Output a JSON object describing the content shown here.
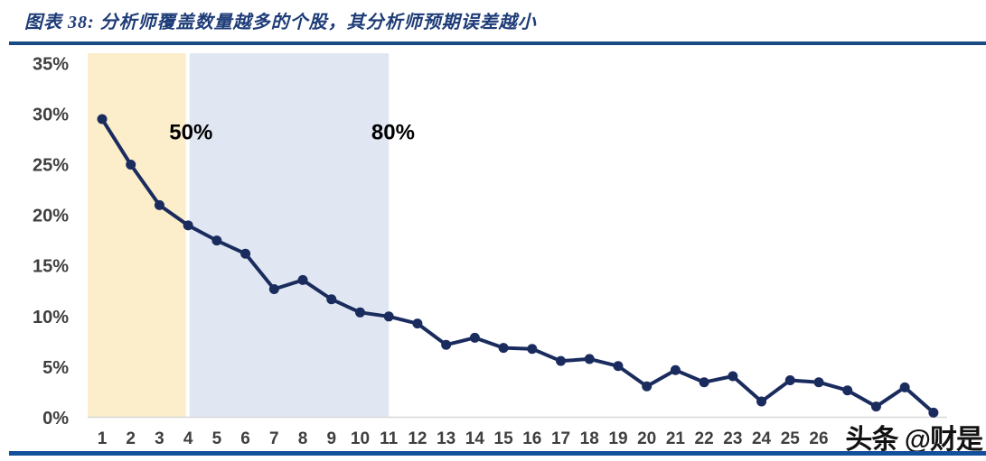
{
  "header": {
    "title": "图表 38:  分析师覆盖数量越多的个股，其分析师预期误差越小"
  },
  "watermark": {
    "text": "头条 @财是"
  },
  "theme": {
    "title_color": "#1E3C78",
    "top_rule_color": "#1A4A82",
    "bottom_rule_color": "#134F9A"
  },
  "chart_data": {
    "type": "line",
    "title": "分析师覆盖数量越多的个股，其分析师预期误差越小",
    "x": [
      1,
      2,
      3,
      4,
      5,
      6,
      7,
      8,
      9,
      10,
      11,
      12,
      13,
      14,
      15,
      16,
      17,
      18,
      19,
      20,
      21,
      22,
      23,
      24,
      25,
      26,
      27,
      28,
      29,
      30
    ],
    "values": [
      29.5,
      25.0,
      21.0,
      19.0,
      17.5,
      16.2,
      12.7,
      13.6,
      11.7,
      10.4,
      10.0,
      9.3,
      7.2,
      7.9,
      6.9,
      6.8,
      5.6,
      5.8,
      5.1,
      3.1,
      4.7,
      3.5,
      4.1,
      1.6,
      3.7,
      3.5,
      2.7,
      1.1,
      3.0,
      0.5
    ],
    "x_tick_labels": [
      "1",
      "2",
      "3",
      "4",
      "5",
      "6",
      "7",
      "8",
      "9",
      "10",
      "11",
      "12",
      "13",
      "14",
      "15",
      "16",
      "17",
      "18",
      "19",
      "20",
      "21",
      "22",
      "23",
      "24",
      "25",
      "26"
    ],
    "y_tick_values": [
      0,
      5,
      10,
      15,
      20,
      25,
      30,
      35
    ],
    "y_tick_suffix": "%",
    "ylim": [
      0,
      36
    ],
    "grid": false,
    "legend": false,
    "bands": [
      {
        "label": "50%",
        "from_x": 0.5,
        "to_x": 3.92,
        "color": "#FCEECA"
      },
      {
        "label": "80%",
        "from_x": 4.05,
        "to_x": 11.0,
        "color": "#E1E7F2"
      }
    ],
    "annotations": [
      {
        "text": "50%",
        "x": 4.1,
        "y": 28.2
      },
      {
        "text": "80%",
        "x": 11.15,
        "y": 28.2
      }
    ],
    "colors": {
      "line": "#1A2C5E",
      "marker": "#1A2C5E",
      "axis_line": "#D8D8D8",
      "tick_label": "#3F3F3F",
      "annotation": "#000000"
    }
  }
}
